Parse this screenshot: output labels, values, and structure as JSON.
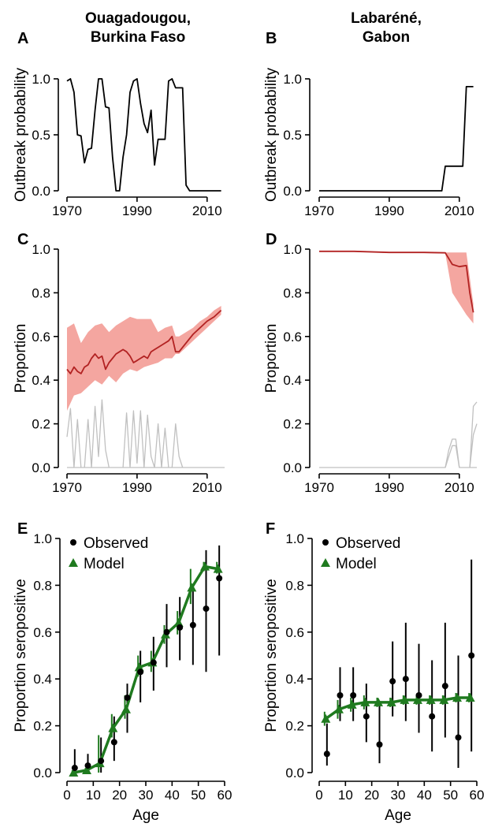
{
  "columns": {
    "left": {
      "line1": "Ouagadougou,",
      "line2": "Burkina Faso"
    },
    "right": {
      "line1": "Labaréné,",
      "line2": "Gabon"
    }
  },
  "colors": {
    "axis": "#000000",
    "probability_line": "#000000",
    "proportion_line": "#b22222",
    "proportion_band": "#f4a6a0",
    "gray_lines": "#c0c0c0",
    "model": "#1f7a1f",
    "observed": "#000000"
  },
  "chart_data": [
    {
      "panel": "A",
      "type": "line",
      "xlabel": "",
      "ylabel": "Outbreak probability",
      "xlim": [
        1970,
        2015
      ],
      "ylim": [
        0,
        1
      ],
      "xticks": [
        1970,
        1990,
        2010
      ],
      "yticks": [
        0.0,
        0.5,
        1.0
      ],
      "ytick_labels": [
        "0.0",
        "0.5",
        "1.0"
      ],
      "series": [
        {
          "x": [
            1970,
            1971,
            1972,
            1973,
            1974,
            1975,
            1976,
            1977,
            1978,
            1979,
            1980,
            1981,
            1982,
            1983,
            1984,
            1985,
            1986,
            1987,
            1988,
            1989,
            1990,
            1991,
            1992,
            1993,
            1994,
            1995,
            1996,
            1997,
            1998,
            1999,
            2000,
            2001,
            2002,
            2003,
            2004,
            2005,
            2006,
            2010,
            2014
          ],
          "y": [
            0.98,
            1.0,
            0.88,
            0.5,
            0.49,
            0.25,
            0.37,
            0.38,
            0.72,
            1.0,
            1.0,
            0.75,
            0.74,
            0.3,
            0.0,
            0.0,
            0.3,
            0.5,
            0.88,
            0.98,
            1.0,
            0.78,
            0.6,
            0.52,
            0.72,
            0.23,
            0.46,
            0.46,
            0.46,
            0.98,
            1.0,
            0.92,
            0.92,
            0.92,
            0.05,
            0.0,
            0.0,
            0.0,
            0.0
          ]
        }
      ]
    },
    {
      "panel": "B",
      "type": "line",
      "xlabel": "",
      "ylabel": "Outbreak probability",
      "xlim": [
        1970,
        2015
      ],
      "ylim": [
        0,
        1
      ],
      "xticks": [
        1970,
        1990,
        2010
      ],
      "yticks": [
        0.0,
        0.5,
        1.0
      ],
      "ytick_labels": [
        "0.0",
        "0.5",
        "1.0"
      ],
      "series": [
        {
          "x": [
            1970,
            2005,
            2006,
            2007,
            2008,
            2009,
            2010,
            2011,
            2012,
            2013,
            2014
          ],
          "y": [
            0.0,
            0.0,
            0.22,
            0.22,
            0.22,
            0.22,
            0.22,
            0.22,
            0.93,
            0.93,
            0.93
          ]
        }
      ]
    },
    {
      "panel": "C",
      "type": "line",
      "xlabel": "",
      "ylabel": "Proportion",
      "xlim": [
        1970,
        2015
      ],
      "ylim": [
        0,
        1
      ],
      "xticks": [
        1970,
        1990,
        2010
      ],
      "yticks": [
        0.0,
        0.2,
        0.4,
        0.6,
        0.8,
        1.0
      ],
      "ytick_labels": [
        "0.0",
        "0.2",
        "0.4",
        "0.6",
        "0.8",
        "1.0"
      ],
      "band": {
        "x": [
          1970,
          1972,
          1974,
          1976,
          1978,
          1980,
          1982,
          1984,
          1986,
          1988,
          1990,
          1992,
          1994,
          1996,
          1998,
          2000,
          2001,
          2002,
          2004,
          2006,
          2008,
          2010,
          2012,
          2014
        ],
        "lower": [
          0.26,
          0.33,
          0.34,
          0.37,
          0.4,
          0.38,
          0.42,
          0.39,
          0.43,
          0.45,
          0.44,
          0.46,
          0.47,
          0.48,
          0.5,
          0.5,
          0.52,
          0.52,
          0.55,
          0.58,
          0.61,
          0.64,
          0.67,
          0.7
        ],
        "upper": [
          0.64,
          0.66,
          0.57,
          0.62,
          0.65,
          0.66,
          0.62,
          0.65,
          0.67,
          0.69,
          0.68,
          0.68,
          0.68,
          0.62,
          0.64,
          0.65,
          0.6,
          0.6,
          0.62,
          0.64,
          0.67,
          0.69,
          0.72,
          0.74
        ]
      },
      "series": [
        {
          "x": [
            1970,
            1971,
            1972,
            1973,
            1974,
            1975,
            1976,
            1977,
            1978,
            1979,
            1980,
            1981,
            1982,
            1983,
            1984,
            1985,
            1986,
            1987,
            1988,
            1989,
            1990,
            1991,
            1992,
            1993,
            1994,
            1995,
            1996,
            1997,
            1998,
            1999,
            2000,
            2001,
            2002,
            2004,
            2006,
            2008,
            2010,
            2012,
            2014
          ],
          "y": [
            0.45,
            0.43,
            0.46,
            0.44,
            0.43,
            0.46,
            0.47,
            0.5,
            0.52,
            0.5,
            0.51,
            0.45,
            0.48,
            0.5,
            0.52,
            0.53,
            0.54,
            0.53,
            0.51,
            0.48,
            0.49,
            0.5,
            0.51,
            0.5,
            0.53,
            0.54,
            0.55,
            0.56,
            0.57,
            0.58,
            0.6,
            0.53,
            0.53,
            0.57,
            0.61,
            0.64,
            0.67,
            0.69,
            0.72
          ]
        },
        {
          "x": [
            1970,
            1971,
            1972,
            1973,
            1974
          ],
          "y": [
            0.14,
            0.27,
            0.0,
            0.22,
            0.0
          ]
        },
        {
          "x": [
            1975,
            1976,
            1977,
            1978,
            1979,
            1980,
            1981,
            1982
          ],
          "y": [
            0.0,
            0.22,
            0.0,
            0.28,
            0.05,
            0.31,
            0.08,
            0.0
          ]
        },
        {
          "x": [
            1986,
            1987,
            1988,
            1989,
            1990,
            1991,
            1992,
            1993,
            1994,
            1995
          ],
          "y": [
            0.0,
            0.25,
            0.0,
            0.26,
            0.02,
            0.26,
            0.0,
            0.24,
            0.05,
            0.0
          ]
        },
        {
          "x": [
            1995,
            1996,
            1997,
            1998,
            1999
          ],
          "y": [
            0.0,
            0.2,
            0.0,
            0.18,
            0.0
          ]
        },
        {
          "x": [
            2000,
            2001,
            2002,
            2003
          ],
          "y": [
            0.0,
            0.2,
            0.05,
            0.0
          ]
        },
        {
          "x": [
            1970,
            2015
          ],
          "y": [
            0.0,
            0.0
          ]
        }
      ]
    },
    {
      "panel": "D",
      "type": "line",
      "xlabel": "",
      "ylabel": "Proportion",
      "xlim": [
        1970,
        2015
      ],
      "ylim": [
        0,
        1
      ],
      "xticks": [
        1970,
        1990,
        2010
      ],
      "yticks": [
        0.0,
        0.2,
        0.4,
        0.6,
        0.8,
        1.0
      ],
      "ytick_labels": [
        "0.0",
        "0.2",
        "0.4",
        "0.6",
        "0.8",
        "1.0"
      ],
      "band": {
        "x": [
          1970,
          2006,
          2008,
          2010,
          2012,
          2014
        ],
        "lower": [
          0.99,
          0.98,
          0.8,
          0.75,
          0.7,
          0.66
        ],
        "upper": [
          0.99,
          0.985,
          0.985,
          0.985,
          0.985,
          0.75
        ]
      },
      "series": [
        {
          "x": [
            1970,
            1980,
            1990,
            2000,
            2006,
            2008,
            2010,
            2012,
            2013,
            2014
          ],
          "y": [
            0.99,
            0.99,
            0.985,
            0.985,
            0.983,
            0.93,
            0.92,
            0.925,
            0.8,
            0.71
          ]
        },
        {
          "x": [
            1970,
            2006,
            2007,
            2008,
            2009,
            2010,
            2015
          ],
          "y": [
            0.0,
            0.0,
            0.08,
            0.13,
            0.13,
            0.0,
            0.0
          ]
        },
        {
          "x": [
            2006,
            2007,
            2008,
            2009,
            2010
          ],
          "y": [
            0.0,
            0.05,
            0.1,
            0.1,
            0.0
          ]
        },
        {
          "x": [
            2013,
            2014,
            2015
          ],
          "y": [
            0.0,
            0.28,
            0.3
          ]
        },
        {
          "x": [
            2013,
            2014,
            2015
          ],
          "y": [
            0.0,
            0.15,
            0.2
          ]
        }
      ]
    },
    {
      "panel": "E",
      "type": "scatter",
      "xlabel": "Age",
      "ylabel": "Proportion seropositive",
      "xlim": [
        0,
        60
      ],
      "ylim": [
        0,
        1
      ],
      "xticks": [
        0,
        10,
        20,
        30,
        40,
        50,
        60
      ],
      "yticks": [
        0.0,
        0.2,
        0.4,
        0.6,
        0.8,
        1.0
      ],
      "ytick_labels": [
        "0.0",
        "0.2",
        "0.4",
        "0.6",
        "0.8",
        "1.0"
      ],
      "legend": [
        "Observed",
        "Model"
      ],
      "observed": {
        "x": [
          2.5,
          7.5,
          12.5,
          17.5,
          22.5,
          27.5,
          32.5,
          37.5,
          42.5,
          47.5,
          52.5,
          57.5
        ],
        "y": [
          0.02,
          0.03,
          0.05,
          0.13,
          0.32,
          0.43,
          0.47,
          0.6,
          0.62,
          0.63,
          0.7,
          0.83
        ],
        "lower": [
          0.0,
          0.0,
          0.0,
          0.05,
          0.17,
          0.3,
          0.35,
          0.45,
          0.48,
          0.46,
          0.43,
          0.5
        ],
        "upper": [
          0.1,
          0.08,
          0.15,
          0.24,
          0.38,
          0.52,
          0.58,
          0.72,
          0.75,
          0.79,
          0.95,
          0.97
        ]
      },
      "model": {
        "x": [
          2.5,
          7.5,
          12.5,
          17.5,
          22.5,
          27.5,
          32.5,
          37.5,
          42.5,
          47.5,
          52.5,
          57.5
        ],
        "y": [
          0.0,
          0.01,
          0.04,
          0.19,
          0.27,
          0.45,
          0.47,
          0.59,
          0.64,
          0.79,
          0.88,
          0.87
        ],
        "lower": [
          0.0,
          0.0,
          0.0,
          0.15,
          0.23,
          0.41,
          0.43,
          0.55,
          0.59,
          0.72,
          0.86,
          0.85
        ],
        "upper": [
          0.01,
          0.02,
          0.16,
          0.25,
          0.33,
          0.5,
          0.52,
          0.63,
          0.69,
          0.87,
          0.9,
          0.9
        ]
      }
    },
    {
      "panel": "F",
      "type": "scatter",
      "xlabel": "Age",
      "ylabel": "Proportion seropositive",
      "xlim": [
        0,
        60
      ],
      "ylim": [
        0,
        1
      ],
      "xticks": [
        0,
        10,
        20,
        30,
        40,
        50,
        60
      ],
      "yticks": [
        0.0,
        0.2,
        0.4,
        0.6,
        0.8,
        1.0
      ],
      "ytick_labels": [
        "0.0",
        "0.2",
        "0.4",
        "0.6",
        "0.8",
        "1.0"
      ],
      "legend": [
        "Observed",
        "Model"
      ],
      "observed": {
        "x": [
          2.5,
          7.5,
          12.5,
          17.5,
          22.5,
          27.5,
          32.5,
          37.5,
          42.5,
          47.5,
          52.5,
          57.5
        ],
        "y": [
          0.08,
          0.33,
          0.33,
          0.24,
          0.12,
          0.39,
          0.4,
          0.33,
          0.24,
          0.37,
          0.15,
          0.5
        ],
        "lower": [
          0.03,
          0.22,
          0.22,
          0.13,
          0.04,
          0.24,
          0.22,
          0.17,
          0.09,
          0.15,
          0.02,
          0.09
        ],
        "upper": [
          0.21,
          0.45,
          0.45,
          0.38,
          0.3,
          0.56,
          0.64,
          0.55,
          0.48,
          0.64,
          0.5,
          0.91
        ]
      },
      "model": {
        "x": [
          2.5,
          7.5,
          12.5,
          17.5,
          22.5,
          27.5,
          32.5,
          37.5,
          42.5,
          47.5,
          52.5,
          57.5
        ],
        "y": [
          0.23,
          0.27,
          0.29,
          0.3,
          0.3,
          0.3,
          0.31,
          0.31,
          0.31,
          0.31,
          0.32,
          0.32
        ],
        "lower": [
          0.2,
          0.23,
          0.26,
          0.27,
          0.28,
          0.28,
          0.29,
          0.29,
          0.29,
          0.29,
          0.3,
          0.3
        ],
        "upper": [
          0.26,
          0.31,
          0.32,
          0.33,
          0.32,
          0.32,
          0.33,
          0.33,
          0.33,
          0.33,
          0.34,
          0.34
        ]
      }
    }
  ]
}
